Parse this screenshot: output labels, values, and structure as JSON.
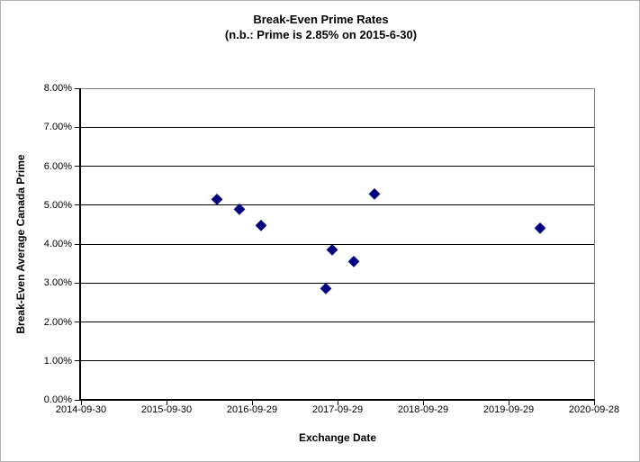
{
  "window": {
    "background": "#ffffff",
    "frame_color": "#b3b3b3"
  },
  "chart_data": {
    "type": "scatter",
    "title": "Break-Even Prime Rates",
    "subtitle": "(n.b.: Prime is 2.85% on 2015-6-30)",
    "xlabel": "Exchange Date",
    "ylabel": "Break-Even Average Canada Prime",
    "grid": "horizontal-on",
    "legend": "none",
    "gridline_color": "#000000",
    "plot_border_color": "#808080",
    "axis_color": "#000000",
    "x_axis": {
      "type": "date",
      "min_date": "2014-09-30",
      "max_date": "2020-09-28",
      "tick_labels": [
        "2014-09-30",
        "2015-09-30",
        "2016-09-29",
        "2017-09-29",
        "2018-09-29",
        "2019-09-29",
        "2020-09-28"
      ]
    },
    "y_axis": {
      "min": 0,
      "max": 8,
      "tick_step": 1,
      "tick_labels": [
        "0.00%",
        "1.00%",
        "2.00%",
        "3.00%",
        "4.00%",
        "5.00%",
        "6.00%",
        "7.00%",
        "8.00%"
      ]
    },
    "series": [
      {
        "name": "Break-Even Average Canada Prime",
        "marker": "diamond",
        "color": "#000080",
        "points": [
          {
            "date": "2016-05-03",
            "value": 5.15
          },
          {
            "date": "2016-08-05",
            "value": 4.9
          },
          {
            "date": "2016-11-07",
            "value": 4.48
          },
          {
            "date": "2017-08-09",
            "value": 2.87
          },
          {
            "date": "2017-09-07",
            "value": 3.87
          },
          {
            "date": "2017-12-08",
            "value": 3.55
          },
          {
            "date": "2018-03-07",
            "value": 5.3
          },
          {
            "date": "2020-02-11",
            "value": 4.42
          }
        ]
      }
    ]
  }
}
